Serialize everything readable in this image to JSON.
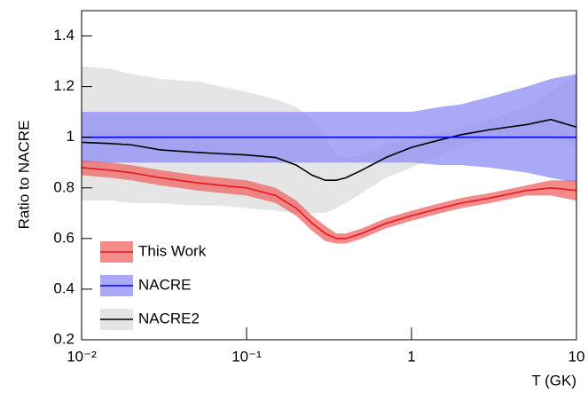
{
  "chart_data": {
    "type": "line",
    "x_label": "T (GK)",
    "y_label": "Ratio to NACRE",
    "x_scale": "log",
    "xlim": [
      0.01,
      10
    ],
    "ylim": [
      0.2,
      1.5
    ],
    "xticks": [
      {
        "value": 0.01,
        "label": "10⁻²"
      },
      {
        "value": 0.1,
        "label": "10⁻¹"
      },
      1,
      10
    ],
    "yticks": [
      0.2,
      0.4,
      0.6,
      0.8,
      1,
      1.2,
      1.4
    ],
    "legend": "lower left",
    "x": [
      0.01,
      0.015,
      0.02,
      0.03,
      0.05,
      0.07,
      0.1,
      0.15,
      0.2,
      0.25,
      0.3,
      0.35,
      0.4,
      0.5,
      0.7,
      1,
      1.5,
      2,
      3,
      5,
      7,
      10
    ],
    "series": [
      {
        "name": "NACRE2",
        "color": "#000000",
        "band_color": "#dcdcdc",
        "values": [
          0.98,
          0.975,
          0.97,
          0.95,
          0.94,
          0.935,
          0.93,
          0.92,
          0.89,
          0.85,
          0.83,
          0.83,
          0.84,
          0.87,
          0.92,
          0.96,
          0.99,
          1.01,
          1.03,
          1.05,
          1.07,
          1.04
        ],
        "lower": [
          0.75,
          0.75,
          0.74,
          0.74,
          0.73,
          0.73,
          0.72,
          0.71,
          0.7,
          0.7,
          0.7,
          0.72,
          0.74,
          0.78,
          0.84,
          0.88,
          0.93,
          0.97,
          0.99,
          1.0,
          1.0,
          0.96
        ],
        "upper": [
          1.28,
          1.27,
          1.25,
          1.23,
          1.22,
          1.2,
          1.18,
          1.15,
          1.12,
          1.07,
          1.0,
          0.93,
          0.92,
          0.93,
          0.97,
          1.0,
          1.02,
          1.04,
          1.07,
          1.12,
          1.18,
          1.25
        ]
      },
      {
        "name": "NACRE",
        "color": "#0000ff",
        "band_color": "#8c8cf5",
        "values": [
          1,
          1,
          1,
          1,
          1,
          1,
          1,
          1,
          1,
          1,
          1,
          1,
          1,
          1,
          1,
          1,
          1,
          1,
          1,
          1,
          1,
          1
        ],
        "lower": [
          0.9,
          0.9,
          0.9,
          0.9,
          0.9,
          0.9,
          0.9,
          0.9,
          0.9,
          0.9,
          0.9,
          0.9,
          0.9,
          0.9,
          0.9,
          0.9,
          0.89,
          0.89,
          0.88,
          0.86,
          0.84,
          0.82
        ],
        "upper": [
          1.1,
          1.1,
          1.1,
          1.1,
          1.1,
          1.1,
          1.1,
          1.1,
          1.1,
          1.1,
          1.1,
          1.1,
          1.1,
          1.1,
          1.1,
          1.1,
          1.12,
          1.13,
          1.16,
          1.2,
          1.23,
          1.25
        ]
      },
      {
        "name": "This Work",
        "color": "#e8141e",
        "band_color": "#f06464",
        "values": [
          0.88,
          0.87,
          0.86,
          0.84,
          0.82,
          0.81,
          0.8,
          0.77,
          0.72,
          0.66,
          0.62,
          0.6,
          0.6,
          0.62,
          0.66,
          0.69,
          0.72,
          0.74,
          0.76,
          0.79,
          0.8,
          0.79
        ],
        "lower": [
          0.85,
          0.84,
          0.83,
          0.81,
          0.79,
          0.78,
          0.77,
          0.74,
          0.69,
          0.63,
          0.59,
          0.58,
          0.58,
          0.6,
          0.64,
          0.67,
          0.7,
          0.72,
          0.74,
          0.77,
          0.77,
          0.75
        ],
        "upper": [
          0.91,
          0.9,
          0.89,
          0.87,
          0.85,
          0.84,
          0.83,
          0.8,
          0.75,
          0.69,
          0.65,
          0.62,
          0.62,
          0.64,
          0.68,
          0.71,
          0.74,
          0.76,
          0.78,
          0.81,
          0.83,
          0.83
        ]
      }
    ]
  }
}
